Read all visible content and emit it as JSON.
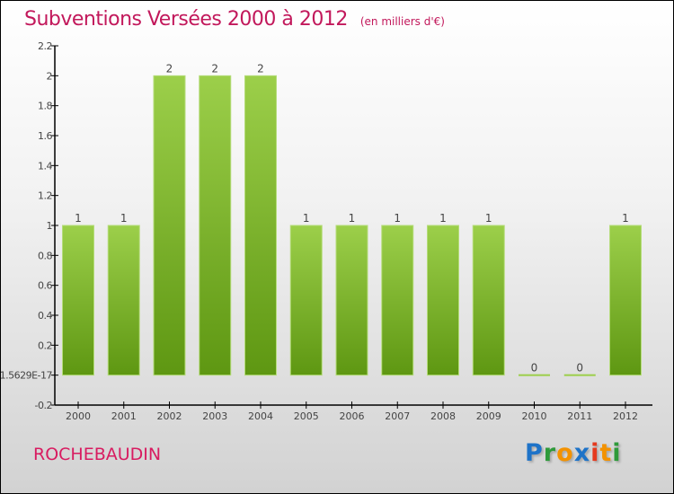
{
  "title": "Subventions Versées 2000 à 2012",
  "unit": "(en milliers d'€)",
  "commune": "ROCHEBAUDIN",
  "logo": "Proxiti",
  "colors": {
    "bar_top": "#9ccf4a",
    "bar_bottom": "#5e9712",
    "title": "#c2185b"
  },
  "chart_data": {
    "type": "bar",
    "title": "Subventions Versées 2000 à 2012",
    "xlabel": "",
    "ylabel": "",
    "categories": [
      "2000",
      "2001",
      "2002",
      "2003",
      "2004",
      "2005",
      "2006",
      "2007",
      "2008",
      "2009",
      "2010",
      "2011",
      "2012"
    ],
    "values": [
      1,
      1,
      2,
      2,
      2,
      1,
      1,
      1,
      1,
      1,
      0,
      0,
      1
    ],
    "ylim": [
      -0.2,
      2.2
    ],
    "yticks": [
      -0.2,
      0,
      0.2,
      0.4,
      0.6,
      0.8,
      1,
      1.2,
      1.4,
      1.6,
      1.8,
      2,
      2.2
    ],
    "ytick_labels": [
      "-0.2",
      "-1.5629E-17",
      "0.2",
      "0.4",
      "0.6",
      "0.8",
      "1",
      "1.2",
      "1.4",
      "1.6",
      "1.8",
      "2",
      "2.2"
    ],
    "grid": false
  }
}
